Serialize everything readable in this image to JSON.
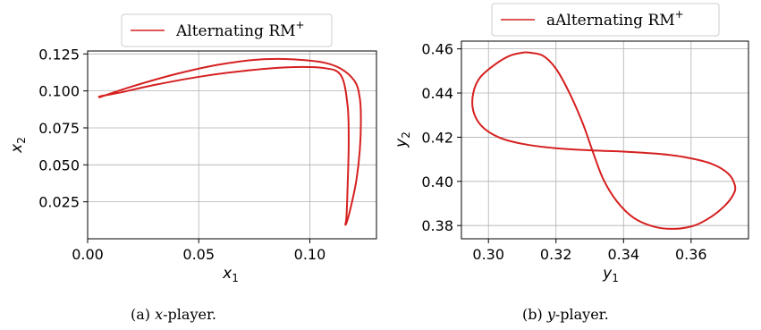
{
  "chart_data": [
    {
      "type": "line",
      "panel": "a",
      "legend": {
        "label": "Alternating RM",
        "sup": "+",
        "placement": "top-center",
        "color": "#d62020"
      },
      "xlabel": {
        "base": "x",
        "sub": "1"
      },
      "ylabel": {
        "base": "x",
        "sub": "2"
      },
      "xlim": [
        0.0,
        0.13
      ],
      "ylim": [
        0.0,
        0.127
      ],
      "xticks": [
        0.0,
        0.05,
        0.1
      ],
      "xtick_labels": [
        "0.00",
        "0.05",
        "0.10"
      ],
      "yticks": [
        0.025,
        0.05,
        0.075,
        0.1,
        0.125
      ],
      "ytick_labels": [
        "0.025",
        "0.050",
        "0.075",
        "0.100",
        "0.125"
      ],
      "grid": true,
      "series_color": "#d62020",
      "series": [
        {
          "x": [
            0.005,
            0.02,
            0.04,
            0.06,
            0.08,
            0.1,
            0.112,
            0.12,
            0.1225,
            0.123,
            0.1225,
            0.121,
            0.119,
            0.117,
            0.116,
            0.1165,
            0.117,
            0.1175,
            0.117,
            0.114,
            0.106,
            0.09,
            0.07,
            0.05,
            0.03,
            0.015,
            0.006,
            0.005
          ],
          "y": [
            0.0955,
            0.103,
            0.1115,
            0.118,
            0.1215,
            0.1205,
            0.1165,
            0.107,
            0.095,
            0.08,
            0.06,
            0.04,
            0.025,
            0.013,
            0.0095,
            0.015,
            0.035,
            0.065,
            0.09,
            0.1105,
            0.1155,
            0.116,
            0.1135,
            0.1095,
            0.104,
            0.099,
            0.0965,
            0.0955
          ]
        }
      ],
      "caption": {
        "label": "(a) ",
        "var": "x",
        "rest": "-player."
      }
    },
    {
      "type": "line",
      "panel": "b",
      "legend": {
        "label": "aAlternating RM",
        "sup": "+",
        "placement": "top-center",
        "color": "#d62020"
      },
      "xlabel": {
        "base": "y",
        "sub": "1"
      },
      "ylabel": {
        "base": "y",
        "sub": "2"
      },
      "xlim": [
        0.292,
        0.377
      ],
      "ylim": [
        0.374,
        0.4635
      ],
      "xticks": [
        0.3,
        0.32,
        0.34,
        0.36
      ],
      "xtick_labels": [
        "0.30",
        "0.32",
        "0.34",
        "0.36"
      ],
      "yticks": [
        0.38,
        0.4,
        0.42,
        0.44,
        0.46
      ],
      "ytick_labels": [
        "0.38",
        "0.40",
        "0.42",
        "0.44",
        "0.46"
      ],
      "grid": true,
      "series_color": "#d62020",
      "series": [
        {
          "x": [
            0.311,
            0.316,
            0.32,
            0.324,
            0.328,
            0.331,
            0.334,
            0.338,
            0.343,
            0.349,
            0.355,
            0.361,
            0.366,
            0.37,
            0.3725,
            0.373,
            0.371,
            0.366,
            0.358,
            0.35,
            0.34,
            0.331,
            0.32,
            0.31,
            0.303,
            0.298,
            0.2955,
            0.2955,
            0.2975,
            0.302,
            0.3065,
            0.311
          ],
          "y": [
            0.4585,
            0.457,
            0.451,
            0.44,
            0.426,
            0.413,
            0.401,
            0.391,
            0.3835,
            0.3795,
            0.3785,
            0.38,
            0.384,
            0.389,
            0.394,
            0.398,
            0.4035,
            0.408,
            0.411,
            0.4125,
            0.4135,
            0.414,
            0.415,
            0.417,
            0.42,
            0.425,
            0.432,
            0.44,
            0.447,
            0.453,
            0.457,
            0.4585
          ]
        }
      ],
      "caption": {
        "label": "(b) ",
        "var": "y",
        "rest": "-player."
      }
    }
  ]
}
